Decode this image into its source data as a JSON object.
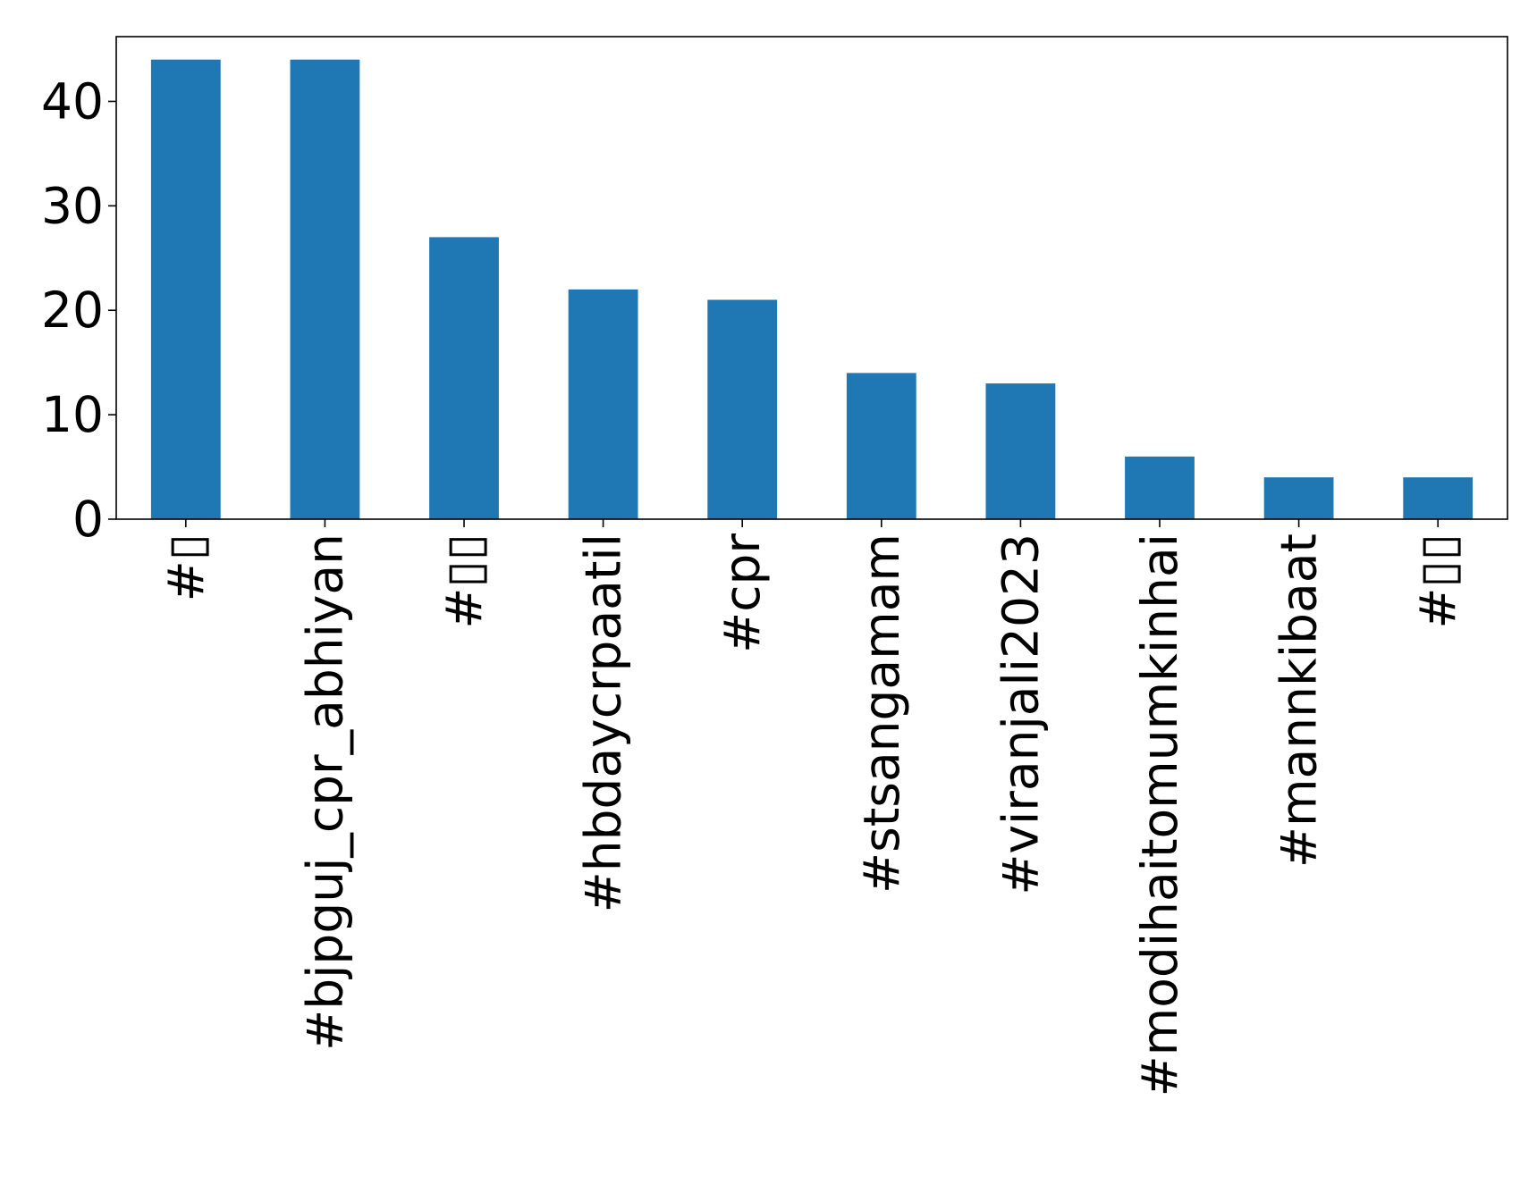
{
  "chart_data": {
    "type": "bar",
    "categories": [
      "#▯",
      "#bjpguj_cpr_abhiyan",
      "#▯▯",
      "#hbdaycrpaatil",
      "#cpr",
      "#stsangamam",
      "#viranjali2023",
      "#modihaitomumkinhai",
      "#mannkibaat",
      "#▯▯"
    ],
    "values": [
      44,
      44,
      27,
      22,
      21,
      14,
      13,
      6,
      4,
      4
    ],
    "title": "",
    "xlabel": "",
    "ylabel": "",
    "ylim": [
      0,
      46.2
    ],
    "yticks": [
      0,
      10,
      20,
      30,
      40
    ],
    "grid": false,
    "bar_color": "#1f77b4"
  }
}
